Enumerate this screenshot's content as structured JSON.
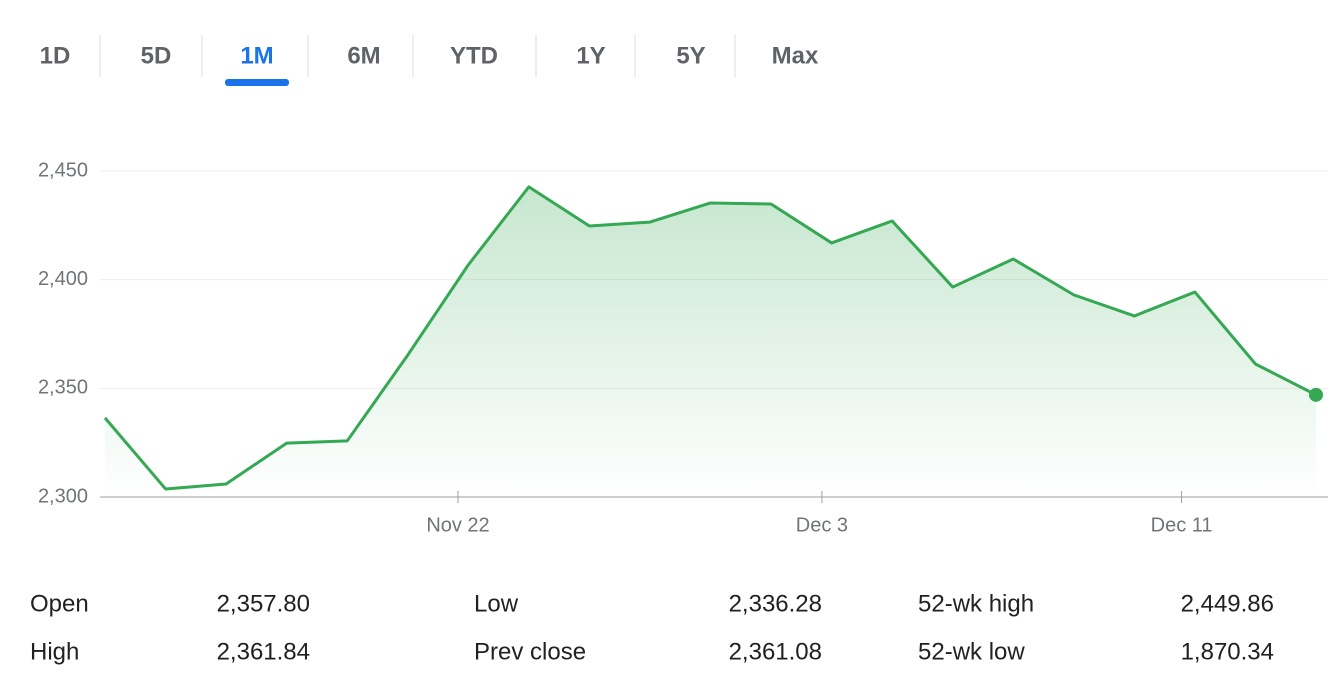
{
  "tabs": {
    "items": [
      "1D",
      "5D",
      "1M",
      "6M",
      "YTD",
      "1Y",
      "5Y",
      "Max"
    ],
    "selected": 2
  },
  "chart_data": {
    "type": "line",
    "x": [
      0,
      1,
      2,
      3,
      4,
      5,
      6,
      7,
      8,
      9,
      10,
      11,
      12,
      13,
      14,
      15,
      16,
      17,
      18,
      19,
      20
    ],
    "values": [
      2336.4,
      2303.7,
      2306,
      2324.8,
      2325.8,
      2365.3,
      2406.8,
      2442.7,
      2424.7,
      2426.5,
      2435.3,
      2434.8,
      2416.9,
      2427,
      2396.6,
      2409.5,
      2393,
      2383.3,
      2394.3,
      2361.2,
      2347
    ],
    "color": "#34a853",
    "xlim": [
      0,
      20
    ],
    "xticks": [
      {
        "value": 5.83,
        "label": "Nov 22"
      },
      {
        "value": 11.84,
        "label": "Dec 3"
      },
      {
        "value": 17.78,
        "label": "Dec 11"
      }
    ],
    "ylim": [
      2300,
      2450
    ],
    "yticks": [
      {
        "value": 2300,
        "label": "2,300"
      },
      {
        "value": 2350,
        "label": "2,350"
      },
      {
        "value": 2400,
        "label": "2,400"
      },
      {
        "value": 2450,
        "label": "2,450"
      }
    ],
    "grid": true
  },
  "stats": {
    "rows": [
      [
        [
          "Open",
          "2,357.80"
        ],
        [
          "Low",
          "2,336.28"
        ],
        [
          "52-wk high",
          "2,449.86"
        ]
      ],
      [
        [
          "High",
          "2,361.84"
        ],
        [
          "Prev close",
          "2,361.08"
        ],
        [
          "52-wk low",
          "1,870.34"
        ]
      ]
    ]
  }
}
